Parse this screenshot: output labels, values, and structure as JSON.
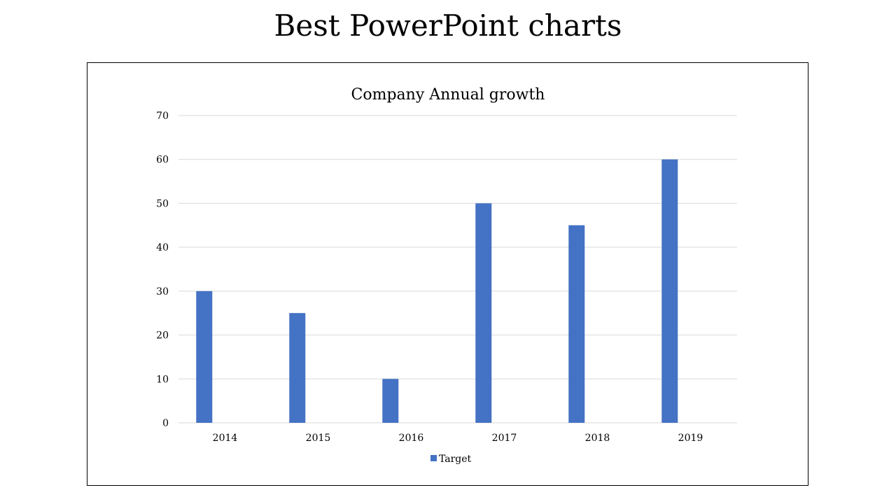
{
  "slide": {
    "title": "Best PowerPoint charts"
  },
  "chart_data": {
    "type": "bar",
    "title": "Company Annual growth",
    "xlabel": "",
    "ylabel": "",
    "categories": [
      "2014",
      "2015",
      "2016",
      "2017",
      "2018",
      "2019"
    ],
    "series": [
      {
        "name": "Target",
        "values": [
          30,
          25,
          10,
          50,
          45,
          60
        ],
        "color": "#4472C4"
      }
    ],
    "ylim": [
      0,
      70
    ],
    "yticks": [
      0,
      10,
      20,
      30,
      40,
      50,
      60,
      70
    ],
    "grid": true,
    "legend": "bottom"
  }
}
